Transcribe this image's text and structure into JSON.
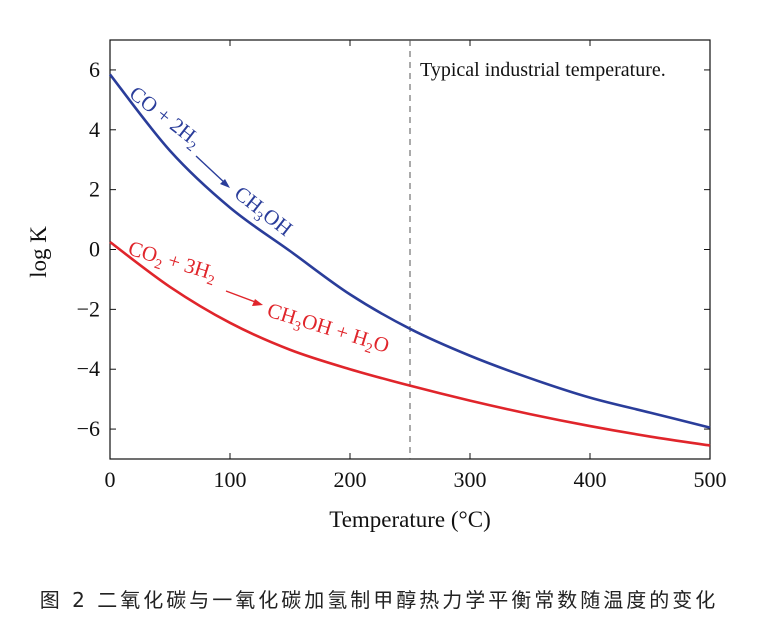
{
  "chart_data": {
    "type": "line",
    "xlabel": "Temperature (°C)",
    "ylabel": "log K",
    "xlim": [
      0,
      500
    ],
    "ylim": [
      -7,
      7
    ],
    "xticks": [
      0,
      100,
      200,
      300,
      400,
      500
    ],
    "yticks": [
      -6,
      -4,
      -2,
      0,
      2,
      4,
      6
    ],
    "xtick_labels": [
      "0",
      "100",
      "200",
      "300",
      "400",
      "500"
    ],
    "ytick_labels": [
      "−6",
      "−4",
      "−2",
      "0",
      "2",
      "4",
      "6"
    ],
    "grid": false,
    "reference_line": {
      "x": 250,
      "style": "dashed",
      "label": "Typical industrial temperature."
    },
    "series": [
      {
        "name": "CO + 2H2 → CH3OH",
        "color": "#2a3d9a",
        "x": [
          0,
          50,
          100,
          150,
          200,
          250,
          300,
          350,
          400,
          450,
          500
        ],
        "y": [
          5.85,
          3.3,
          1.4,
          -0.05,
          -1.5,
          -2.65,
          -3.55,
          -4.3,
          -4.95,
          -5.45,
          -5.95
        ]
      },
      {
        "name": "CO2 + 3H2 → CH3OH + H2O",
        "color": "#e0252b",
        "x": [
          0,
          50,
          100,
          150,
          200,
          250,
          300,
          350,
          400,
          450,
          500
        ],
        "y": [
          0.25,
          -1.25,
          -2.45,
          -3.35,
          -4.0,
          -4.55,
          -5.05,
          -5.5,
          -5.9,
          -6.25,
          -6.55
        ]
      }
    ]
  },
  "labels": {
    "reaction1": {
      "lhs": "CO + 2H",
      "lhs_sub": "2",
      "product": "CH",
      "product_sub": "3",
      "product_tail": "OH"
    },
    "reaction2": {
      "lhs_a": "CO",
      "lhs_a_sub": "2",
      "lhs_b": " + 3H",
      "lhs_b_sub": "2",
      "product_a": "CH",
      "product_a_sub": "3",
      "product_b": "OH + H",
      "product_b_sub": "2",
      "product_c": "O"
    }
  },
  "caption": "图 2  二氧化碳与一氧化碳加氢制甲醇热力学平衡常数随温度的变化"
}
